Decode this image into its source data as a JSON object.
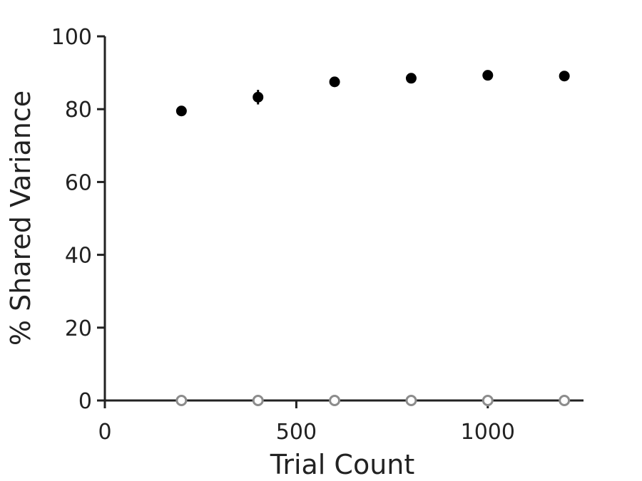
{
  "chart_data": {
    "type": "scatter",
    "title": "",
    "xlabel": "Trial Count",
    "ylabel": "% Shared Variance",
    "xlim": [
      0,
      1250
    ],
    "ylim": [
      0,
      100
    ],
    "xticks": [
      0,
      500,
      1000
    ],
    "yticks": [
      0,
      20,
      40,
      60,
      80,
      100
    ],
    "grid": false,
    "legend": "none",
    "series": [
      {
        "marker": "filled-circle",
        "color": "#000000",
        "x": [
          200,
          400,
          600,
          800,
          1000,
          1200
        ],
        "y": [
          79.5,
          83.3,
          87.5,
          88.5,
          89.3,
          89.1
        ],
        "error": [
          1.2,
          2.0,
          0.8,
          0.6,
          0.6,
          0.5
        ]
      },
      {
        "marker": "open-circle",
        "color": "#8c8c8c",
        "x": [
          200,
          400,
          600,
          800,
          1000,
          1200
        ],
        "y": [
          0,
          0,
          0,
          0,
          0,
          0
        ],
        "error": [
          0,
          0,
          0,
          0,
          0,
          0
        ]
      }
    ]
  }
}
